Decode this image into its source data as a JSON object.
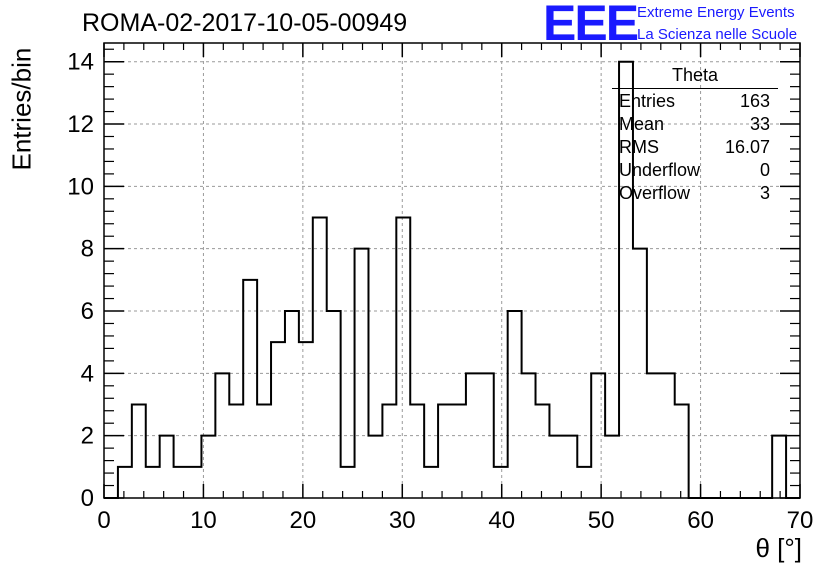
{
  "chart_data": {
    "type": "histogram",
    "title": "ROMA-02-2017-10-05-00949",
    "xlabel": "θ [°]",
    "ylabel": "Entries/bin",
    "xlim": [
      0,
      70
    ],
    "ylim": [
      0,
      14.6
    ],
    "xticks": [
      "0",
      "10",
      "20",
      "30",
      "40",
      "50",
      "60",
      "70"
    ],
    "yticks": [
      "0",
      "2",
      "4",
      "6",
      "8",
      "10",
      "12",
      "14"
    ],
    "grid": true,
    "bin_edges": [
      0,
      1.4,
      2.8,
      4.2,
      5.6,
      7.0,
      8.4,
      9.8,
      11.2,
      12.6,
      14.0,
      15.4,
      16.8,
      18.2,
      19.6,
      21.0,
      22.4,
      23.8,
      25.2,
      26.6,
      28.0,
      29.4,
      30.8,
      32.2,
      33.6,
      35.0,
      36.4,
      37.8,
      39.2,
      40.6,
      42.0,
      43.4,
      44.8,
      46.2,
      47.6,
      49.0,
      50.4,
      51.8,
      53.2,
      54.6,
      56.0,
      57.4,
      58.8,
      60.2,
      61.6,
      63.0,
      64.4,
      65.8,
      67.2,
      68.6,
      70.0
    ],
    "counts": [
      0,
      1,
      3,
      1,
      2,
      1,
      1,
      2,
      4,
      3,
      7,
      3,
      5,
      6,
      5,
      9,
      6,
      1,
      8,
      2,
      3,
      9,
      3,
      1,
      3,
      3,
      4,
      4,
      1,
      6,
      4,
      3,
      2,
      2,
      1,
      4,
      2,
      14,
      8,
      4,
      4,
      3,
      0,
      0,
      0,
      0,
      0,
      0,
      2,
      0
    ],
    "stats": {
      "name": "Theta",
      "entries_label": "Entries",
      "entries": "163",
      "mean_label": "Mean",
      "mean": "33",
      "rms_label": "RMS",
      "rms": "16.07",
      "underflow_label": "Underflow",
      "underflow": "0",
      "overflow_label": "Overflow",
      "overflow": "3"
    }
  },
  "logo": {
    "mark": "EEE",
    "line1": "Extreme Energy Events",
    "line2": "La Scienza nelle Scuole"
  }
}
